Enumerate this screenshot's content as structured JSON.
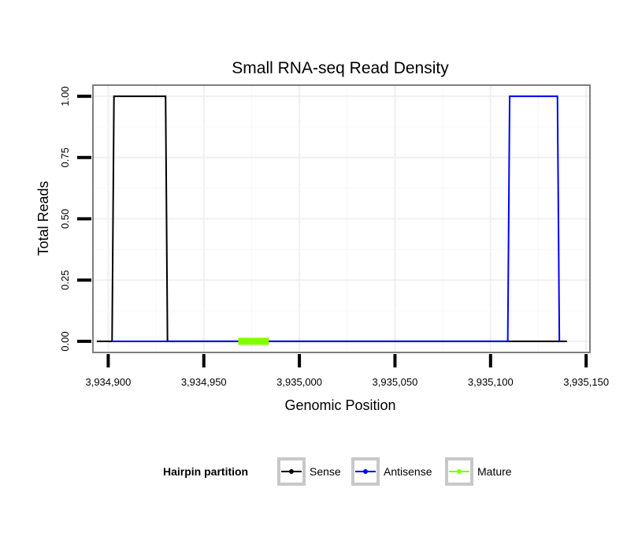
{
  "chart_data": {
    "type": "line",
    "title": "Small RNA-seq Read Density",
    "xlabel": "Genomic Position",
    "ylabel": "Total Reads",
    "xlim": [
      3934892,
      3935152
    ],
    "ylim": [
      -0.0453,
      1.0453
    ],
    "x_ticks": [
      3934900,
      3934950,
      3935000,
      3935050,
      3935100,
      3935150
    ],
    "x_tick_labels": [
      "3,934,900",
      "3,934,950",
      "3,935,000",
      "3,935,050",
      "3,935,100",
      "3,935,150"
    ],
    "y_ticks": [
      0,
      0.25,
      0.5,
      0.75,
      1
    ],
    "y_tick_labels": [
      "0.00",
      "0.25",
      "0.50",
      "0.75",
      "1.00"
    ],
    "grid": true,
    "legend": {
      "title": "Hairpin partition",
      "position": "bottom",
      "entries": [
        "Sense",
        "Antisense",
        "Mature"
      ]
    },
    "series": [
      {
        "name": "Sense",
        "color": "#000000",
        "x": [
          3934894,
          3934902,
          3934903,
          3934930,
          3934931,
          3935140
        ],
        "y": [
          0,
          0,
          1,
          1,
          0,
          0
        ]
      },
      {
        "name": "Antisense",
        "color": "#0000ff",
        "x": [
          3934902,
          3934931,
          3935109,
          3935110,
          3935135,
          3935136
        ],
        "y": [
          0,
          0,
          0,
          1,
          1,
          0
        ]
      },
      {
        "name": "Mature",
        "color": "#7fff00",
        "x": [
          3934968,
          3934984
        ],
        "y": [
          0,
          0
        ]
      }
    ]
  }
}
